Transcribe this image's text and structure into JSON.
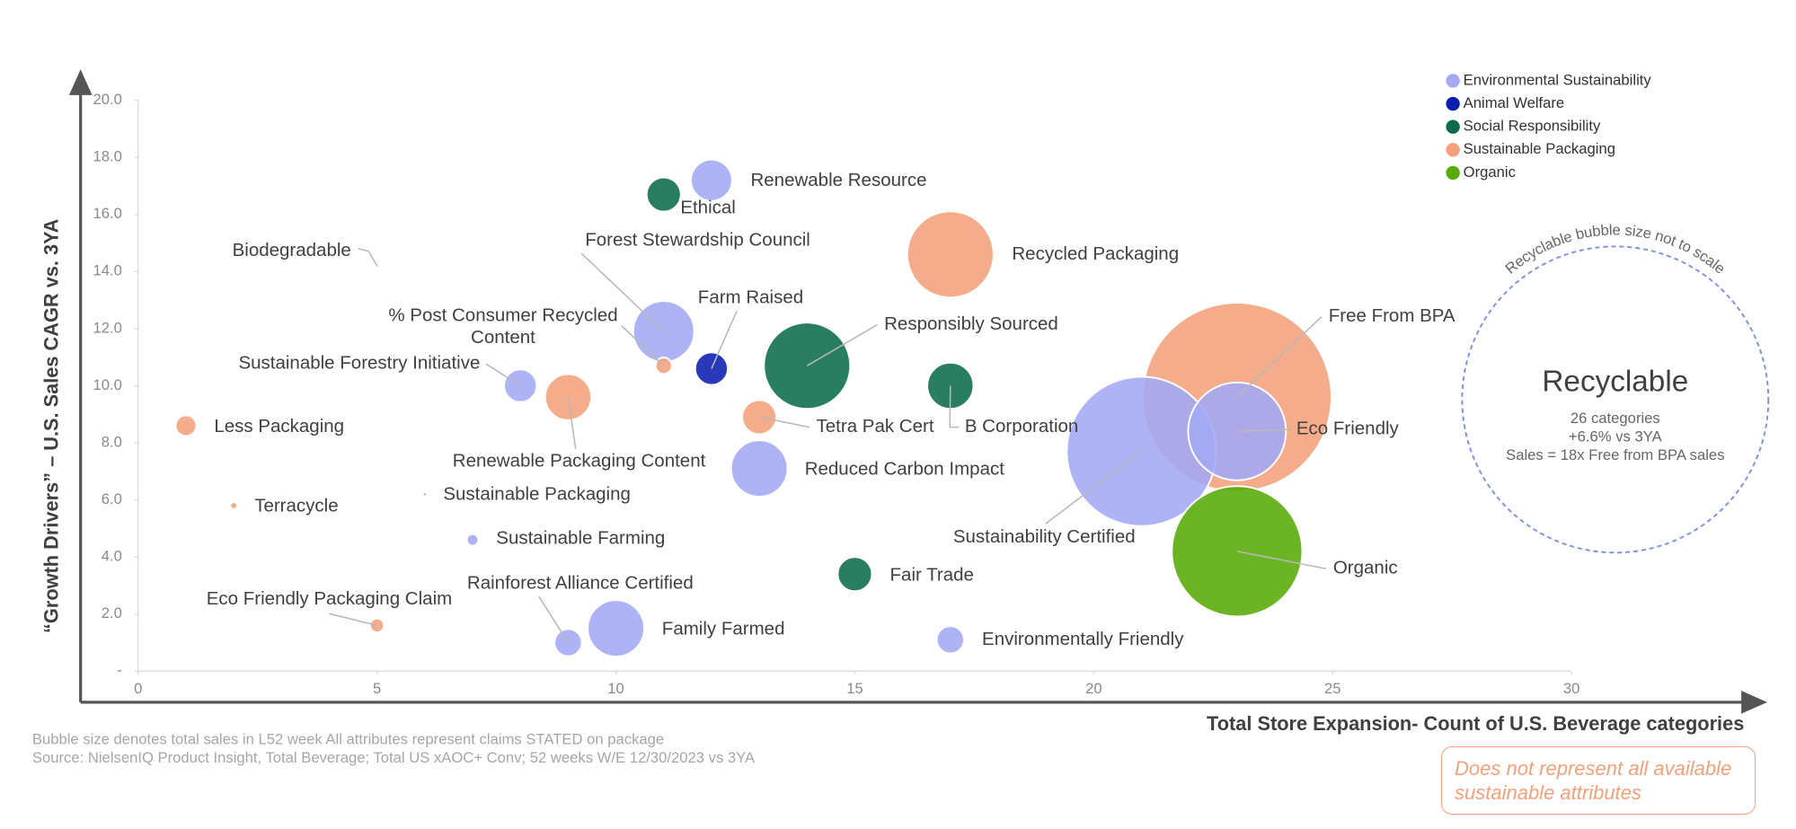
{
  "chart_data": {
    "type": "bubble",
    "x_label": "Total Store Expansion- Count of U.S. Beverage categories",
    "y_label": "“Growth Drivers” – U.S. Sales CAGR vs. 3YA",
    "xlim": [
      0,
      30
    ],
    "ylim": [
      0,
      20
    ],
    "xticks": [
      0,
      5,
      10,
      15,
      20,
      25,
      30
    ],
    "yticks": [
      {
        "value": 0,
        "label": "-"
      },
      {
        "value": 2,
        "label": "2.0"
      },
      {
        "value": 4,
        "label": "4.0"
      },
      {
        "value": 6,
        "label": "6.0"
      },
      {
        "value": 8,
        "label": "8.0"
      },
      {
        "value": 10,
        "label": "10.0"
      },
      {
        "value": 12,
        "label": "12.0"
      },
      {
        "value": 14,
        "label": "14.0"
      },
      {
        "value": 16,
        "label": "16.0"
      },
      {
        "value": 18,
        "label": "18.0"
      },
      {
        "value": 20,
        "label": "20.0"
      }
    ],
    "series": [
      {
        "name": "Environmental Sustainability",
        "color": "#a3a8f5",
        "labels": [
          "Renewable Resource",
          "Forest Stewardship Council",
          "Sustainable Forestry Initiative",
          "Reduced Carbon Impact",
          "Sustainable Farming",
          "Family Farmed",
          "Rainforest Alliance Certified",
          "Environmentally Friendly",
          "Sustainability Certified",
          "Eco Friendly"
        ],
        "x": [
          12,
          11,
          8,
          13,
          7,
          10,
          9,
          17,
          21,
          23
        ],
        "values": [
          17.2,
          11.9,
          10.0,
          7.1,
          4.6,
          1.5,
          1.0,
          1.1,
          7.7,
          8.4
        ],
        "sizes": [
          3.2,
          7,
          2,
          6,
          0.25,
          6,
          1.4,
          1.4,
          42,
          18
        ]
      },
      {
        "name": "Animal Welfare",
        "color": "#0a1fb0",
        "labels": [
          "Farm Raised"
        ],
        "x": [
          12
        ],
        "values": [
          10.6
        ],
        "sizes": [
          2
        ]
      },
      {
        "name": "Social Responsibility",
        "color": "#0b6b4a",
        "labels": [
          "Ethical",
          "Responsibly Sourced",
          "B Corporation",
          "Fair Trade"
        ],
        "x": [
          11,
          14,
          17,
          15
        ],
        "values": [
          16.7,
          10.7,
          10.0,
          3.4
        ],
        "sizes": [
          2.2,
          14,
          4,
          2.2
        ]
      },
      {
        "name": "Sustainable Packaging",
        "color": "#f4a07a",
        "labels": [
          "Recycled Packaging",
          "Free From BPA",
          "Less Packaging",
          "Renewable Packaging Content",
          "% Post Consumer Recycled Content",
          "Tetra Pak Cert",
          "Terracycle",
          "Sustainable Packaging",
          "Eco Friendly Packaging Claim",
          "Biodegradable"
        ],
        "x": [
          17,
          23,
          1,
          9,
          11,
          13,
          2,
          6,
          5,
          5
        ],
        "values": [
          14.6,
          9.6,
          8.6,
          9.6,
          10.7,
          8.9,
          5.8,
          6.2,
          1.6,
          14.2
        ],
        "sizes": [
          14,
          67,
          0.8,
          4,
          0.5,
          2.2,
          0.09,
          0.01,
          0.36,
          0.003
        ]
      },
      {
        "name": "Organic",
        "color": "#57ab06",
        "labels": [
          "Organic"
        ],
        "x": [
          23
        ],
        "values": [
          4.2
        ],
        "sizes": [
          32
        ]
      }
    ],
    "annotations": {
      "recyclable_title": "Recyclable",
      "recyclable_lines": [
        "26 categories",
        "+6.6% vs 3YA",
        "Sales = 18x Free from BPA sales"
      ],
      "recyclable_arc": "Recyclable bubble size not to scale",
      "footnotes": [
        "Bubble size denotes total sales in L52 week All attributes represent claims STATED on package",
        "Source: NielsenIQ Product Insight, Total Beverage; Total US xAOC+ Conv; 52 weeks W/E 12/30/2023 vs 3YA"
      ],
      "note": "Does not represent all available sustainable attributes"
    }
  }
}
